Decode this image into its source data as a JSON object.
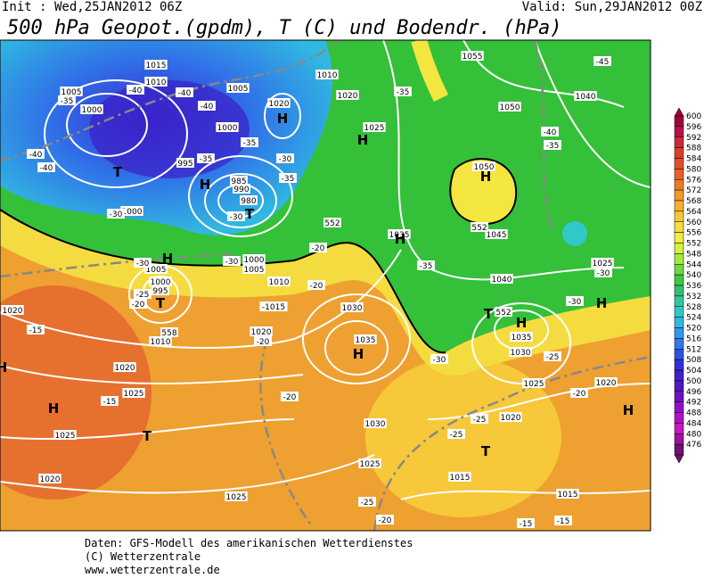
{
  "header": {
    "init": "Init : Wed,25JAN2012 06Z",
    "valid": "Valid: Sun,29JAN2012 00Z",
    "title": "500 hPa Geopot.(gpdm), T (C) und Bodendr. (hPa)"
  },
  "colorbar": {
    "ticks": [
      600,
      596,
      592,
      588,
      584,
      580,
      576,
      572,
      568,
      564,
      560,
      556,
      552,
      548,
      544,
      540,
      536,
      532,
      528,
      524,
      520,
      516,
      512,
      508,
      504,
      500,
      496,
      492,
      488,
      484,
      480,
      476
    ],
    "colors": [
      "#a0003c",
      "#b8104a",
      "#c82a3a",
      "#d8402a",
      "#e0502a",
      "#e86028",
      "#ee7a28",
      "#f29a2a",
      "#f6b030",
      "#f8c838",
      "#f6dc40",
      "#f0ec40",
      "#d8f040",
      "#a8e840",
      "#70d840",
      "#40c840",
      "#30c070",
      "#30c8a0",
      "#30c8c8",
      "#30b8e0",
      "#3098e8",
      "#3078e8",
      "#3050e0",
      "#3030d8",
      "#4020c8",
      "#5018c0",
      "#7010c0",
      "#9010c8",
      "#b010c8",
      "#c818c0",
      "#a010a0",
      "#701070"
    ]
  },
  "map_labels": [
    "1015",
    "1010",
    "1005",
    "1000",
    "-40",
    "-40",
    "-40",
    "-35",
    "-40",
    "-40",
    "T",
    "995",
    "-35",
    "H",
    "1005",
    "1000",
    "985",
    "990",
    "980",
    "-30",
    "T",
    "1020",
    "H",
    "-35",
    "-30",
    "-35",
    "1010",
    "1020",
    "-35",
    "1025",
    "H",
    "1050",
    "H",
    "-40",
    "-35",
    "1040",
    "-45",
    "1055",
    "1050",
    "1045",
    "1035",
    "H",
    "-35",
    "1040",
    "1025",
    "-30",
    "H",
    "-30",
    "1000",
    "-30",
    "H",
    "1005",
    "1000",
    "995",
    "T",
    "-30",
    "-25",
    "-20",
    "1010",
    "-30",
    "1000",
    "1005",
    "1010",
    "-1015",
    "-20",
    "-20",
    "1030",
    "1035",
    "H",
    "1020",
    "-20",
    "1020",
    "-15",
    "1020",
    "1025",
    "-15",
    "H",
    "T",
    "1025",
    "1020",
    "1025",
    "-20",
    "1030",
    "1025",
    "-25",
    "-20",
    "-30",
    "1035",
    "H",
    "T",
    "1030",
    "1025",
    "-25",
    "-20",
    "1020",
    "H",
    "-25",
    "1020",
    "-25",
    "T",
    "1015",
    "1015",
    "-15",
    "-15",
    "H",
    "552",
    "552",
    "552",
    "558"
  ],
  "footer": [
    "Daten: GFS-Modell des amerikanischen Wetterdienstes",
    "(C) Wetterzentrale",
    "www.wetterzentrale.de"
  ]
}
